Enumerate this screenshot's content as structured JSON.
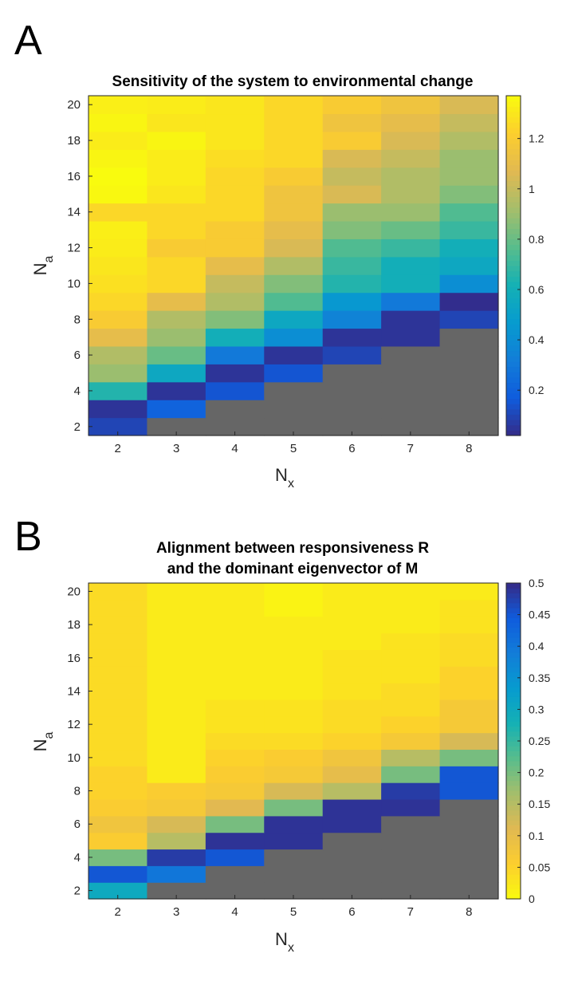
{
  "chart_data": [
    {
      "panel_letter": "A",
      "type": "heatmap",
      "title": "Sensitivity of the system to environmental change",
      "xlabel": "N",
      "xlabel_sub": "x",
      "ylabel": "N",
      "ylabel_sub": "a",
      "x": [
        2,
        3,
        4,
        5,
        6,
        7,
        8
      ],
      "y": [
        2,
        3,
        4,
        5,
        6,
        7,
        8,
        9,
        10,
        11,
        12,
        13,
        14,
        15,
        16,
        17,
        18,
        19,
        20
      ],
      "xticks": [
        "2",
        "3",
        "4",
        "5",
        "6",
        "7",
        "8"
      ],
      "yticks": [
        "2",
        "4",
        "6",
        "8",
        "10",
        "12",
        "14",
        "16",
        "18",
        "20"
      ],
      "colormap": "parula",
      "clim": [
        0.02,
        1.37
      ],
      "colorbar_ticks": [
        "0.2",
        "0.4",
        "0.6",
        "0.8",
        "1",
        "1.2"
      ],
      "colorbar_tick_values": [
        0.2,
        0.4,
        0.6,
        0.8,
        1.0,
        1.2
      ],
      "nan_color": "#666666",
      "values": [
        [
          0.1,
          null,
          null,
          null,
          null,
          null,
          null
        ],
        [
          0.05,
          0.2,
          null,
          null,
          null,
          null,
          null
        ],
        [
          0.65,
          0.05,
          0.15,
          null,
          null,
          null,
          null
        ],
        [
          0.9,
          0.55,
          0.05,
          0.15,
          null,
          null,
          null
        ],
        [
          0.95,
          0.8,
          0.3,
          0.05,
          0.1,
          null,
          null
        ],
        [
          1.1,
          0.9,
          0.6,
          0.4,
          0.05,
          0.05,
          null
        ],
        [
          1.2,
          0.95,
          0.85,
          0.55,
          0.35,
          0.05,
          0.1
        ],
        [
          1.25,
          1.1,
          0.95,
          0.75,
          0.45,
          0.3,
          0.03
        ],
        [
          1.28,
          1.25,
          1.0,
          0.85,
          0.65,
          0.6,
          0.4
        ],
        [
          1.3,
          1.25,
          1.1,
          0.95,
          0.7,
          0.6,
          0.55
        ],
        [
          1.32,
          1.2,
          1.2,
          1.05,
          0.75,
          0.7,
          0.6
        ],
        [
          1.33,
          1.25,
          1.2,
          1.1,
          0.85,
          0.8,
          0.7
        ],
        [
          1.25,
          1.25,
          1.25,
          1.15,
          0.9,
          0.9,
          0.75
        ],
        [
          1.36,
          1.3,
          1.25,
          1.15,
          1.05,
          0.95,
          0.85
        ],
        [
          1.37,
          1.32,
          1.25,
          1.2,
          1.0,
          0.95,
          0.9
        ],
        [
          1.35,
          1.32,
          1.27,
          1.25,
          1.05,
          1.0,
          0.9
        ],
        [
          1.32,
          1.35,
          1.3,
          1.25,
          1.2,
          1.05,
          0.95
        ],
        [
          1.35,
          1.3,
          1.3,
          1.25,
          1.15,
          1.1,
          1.0
        ],
        [
          1.33,
          1.32,
          1.3,
          1.25,
          1.2,
          1.15,
          1.05
        ]
      ]
    },
    {
      "panel_letter": "B",
      "type": "heatmap",
      "title": "Alignment between responsiveness R",
      "title_line2": "and the dominant eigenvector of M",
      "xlabel": "N",
      "xlabel_sub": "x",
      "ylabel": "N",
      "ylabel_sub": "a",
      "x": [
        2,
        3,
        4,
        5,
        6,
        7,
        8
      ],
      "y": [
        2,
        3,
        4,
        5,
        6,
        7,
        8,
        9,
        10,
        11,
        12,
        13,
        14,
        15,
        16,
        17,
        18,
        19,
        20
      ],
      "xticks": [
        "2",
        "3",
        "4",
        "5",
        "6",
        "7",
        "8"
      ],
      "yticks": [
        "2",
        "4",
        "6",
        "8",
        "10",
        "12",
        "14",
        "16",
        "18",
        "20"
      ],
      "colormap": "parula_reversed",
      "clim": [
        0,
        0.5
      ],
      "colorbar_ticks": [
        "0",
        "0.05",
        "0.1",
        "0.15",
        "0.2",
        "0.25",
        "0.3",
        "0.35",
        "0.4",
        "0.45",
        "0.5"
      ],
      "colorbar_tick_values": [
        0,
        0.05,
        0.1,
        0.15,
        0.2,
        0.25,
        0.3,
        0.35,
        0.4,
        0.45,
        0.5
      ],
      "nan_color": "#666666",
      "values": [
        [
          0.3,
          null,
          null,
          null,
          null,
          null,
          null
        ],
        [
          0.45,
          0.4,
          null,
          null,
          null,
          null,
          null
        ],
        [
          0.2,
          0.48,
          0.45,
          null,
          null,
          null,
          null
        ],
        [
          0.06,
          0.15,
          0.49,
          0.49,
          null,
          null,
          null
        ],
        [
          0.08,
          0.12,
          0.2,
          0.49,
          0.49,
          null,
          null
        ],
        [
          0.06,
          0.07,
          0.11,
          0.2,
          0.49,
          0.49,
          null
        ],
        [
          0.05,
          0.06,
          0.07,
          0.12,
          0.15,
          0.48,
          0.45
        ],
        [
          0.05,
          0.02,
          0.06,
          0.07,
          0.1,
          0.2,
          0.45
        ],
        [
          0.04,
          0.02,
          0.05,
          0.06,
          0.08,
          0.15,
          0.2
        ],
        [
          0.04,
          0.02,
          0.04,
          0.04,
          0.05,
          0.07,
          0.12
        ],
        [
          0.04,
          0.02,
          0.03,
          0.03,
          0.04,
          0.05,
          0.07
        ],
        [
          0.04,
          0.02,
          0.03,
          0.03,
          0.04,
          0.04,
          0.07
        ],
        [
          0.04,
          0.02,
          0.02,
          0.02,
          0.03,
          0.04,
          0.05
        ],
        [
          0.04,
          0.02,
          0.02,
          0.02,
          0.03,
          0.03,
          0.05
        ],
        [
          0.04,
          0.02,
          0.02,
          0.02,
          0.03,
          0.03,
          0.04
        ],
        [
          0.04,
          0.02,
          0.02,
          0.02,
          0.02,
          0.03,
          0.04
        ],
        [
          0.04,
          0.02,
          0.02,
          0.02,
          0.02,
          0.02,
          0.03
        ],
        [
          0.04,
          0.02,
          0.02,
          0.01,
          0.02,
          0.02,
          0.03
        ],
        [
          0.04,
          0.02,
          0.02,
          0.01,
          0.02,
          0.02,
          0.02
        ]
      ]
    }
  ]
}
